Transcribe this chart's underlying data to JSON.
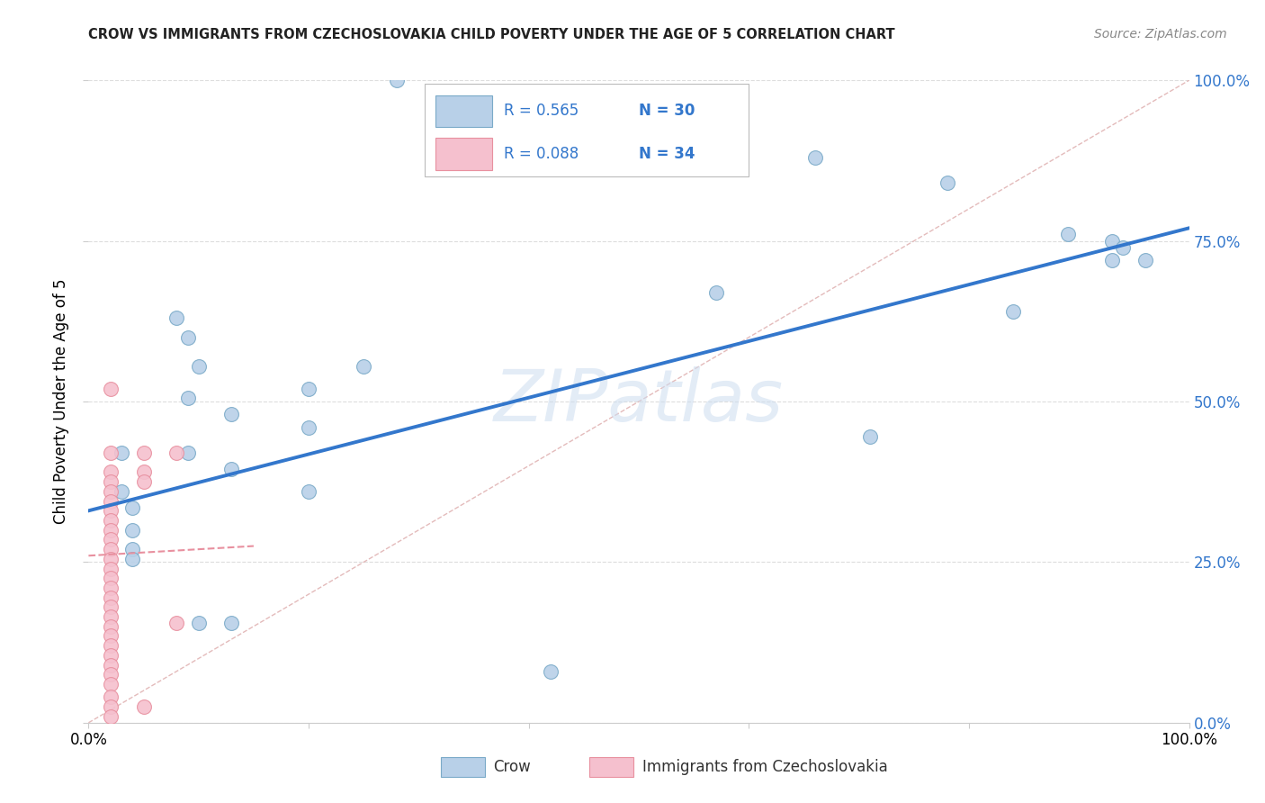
{
  "title": "CROW VS IMMIGRANTS FROM CZECHOSLOVAKIA CHILD POVERTY UNDER THE AGE OF 5 CORRELATION CHART",
  "source": "Source: ZipAtlas.com",
  "ylabel": "Child Poverty Under the Age of 5",
  "ytick_labels": [
    "0.0%",
    "25.0%",
    "50.0%",
    "75.0%",
    "100.0%"
  ],
  "ytick_vals": [
    0.0,
    0.25,
    0.5,
    0.75,
    1.0
  ],
  "xtick_labels": [
    "0.0%",
    "",
    "",
    "",
    "",
    "100.0%"
  ],
  "xtick_vals": [
    0.0,
    0.2,
    0.4,
    0.6,
    0.8,
    1.0
  ],
  "watermark": "ZIPatlas",
  "crow_color": "#b8d0e8",
  "crow_edge_color": "#7aaac8",
  "immig_color": "#f5c0ce",
  "immig_edge_color": "#e8909f",
  "blue_line_color": "#3377cc",
  "pink_line_color": "#e8909f",
  "diag_line_color": "#ddaaaa",
  "crow_points": [
    [
      0.28,
      1.0
    ],
    [
      0.66,
      0.88
    ],
    [
      0.78,
      0.84
    ],
    [
      0.89,
      0.76
    ],
    [
      0.93,
      0.75
    ],
    [
      0.94,
      0.74
    ],
    [
      0.93,
      0.72
    ],
    [
      0.96,
      0.72
    ],
    [
      0.57,
      0.67
    ],
    [
      0.84,
      0.64
    ],
    [
      0.08,
      0.63
    ],
    [
      0.09,
      0.6
    ],
    [
      0.1,
      0.555
    ],
    [
      0.25,
      0.555
    ],
    [
      0.2,
      0.52
    ],
    [
      0.09,
      0.505
    ],
    [
      0.13,
      0.48
    ],
    [
      0.2,
      0.46
    ],
    [
      0.71,
      0.445
    ],
    [
      0.09,
      0.42
    ],
    [
      0.03,
      0.42
    ],
    [
      0.13,
      0.395
    ],
    [
      0.2,
      0.36
    ],
    [
      0.03,
      0.36
    ],
    [
      0.04,
      0.335
    ],
    [
      0.04,
      0.3
    ],
    [
      0.04,
      0.27
    ],
    [
      0.04,
      0.255
    ],
    [
      0.1,
      0.155
    ],
    [
      0.13,
      0.155
    ],
    [
      0.42,
      0.08
    ]
  ],
  "immig_points": [
    [
      0.02,
      0.52
    ],
    [
      0.02,
      0.42
    ],
    [
      0.02,
      0.39
    ],
    [
      0.02,
      0.375
    ],
    [
      0.02,
      0.36
    ],
    [
      0.02,
      0.345
    ],
    [
      0.02,
      0.33
    ],
    [
      0.02,
      0.315
    ],
    [
      0.02,
      0.3
    ],
    [
      0.02,
      0.285
    ],
    [
      0.02,
      0.27
    ],
    [
      0.02,
      0.255
    ],
    [
      0.02,
      0.24
    ],
    [
      0.02,
      0.225
    ],
    [
      0.02,
      0.21
    ],
    [
      0.02,
      0.195
    ],
    [
      0.02,
      0.18
    ],
    [
      0.02,
      0.165
    ],
    [
      0.02,
      0.15
    ],
    [
      0.02,
      0.135
    ],
    [
      0.02,
      0.12
    ],
    [
      0.02,
      0.105
    ],
    [
      0.02,
      0.09
    ],
    [
      0.02,
      0.075
    ],
    [
      0.02,
      0.06
    ],
    [
      0.02,
      0.04
    ],
    [
      0.02,
      0.025
    ],
    [
      0.05,
      0.42
    ],
    [
      0.05,
      0.39
    ],
    [
      0.05,
      0.375
    ],
    [
      0.05,
      0.025
    ],
    [
      0.08,
      0.42
    ],
    [
      0.02,
      0.01
    ],
    [
      0.08,
      0.155
    ]
  ],
  "crow_line_x": [
    0.0,
    1.0
  ],
  "crow_line_y": [
    0.33,
    0.77
  ],
  "immig_line_x": [
    0.0,
    0.15
  ],
  "immig_line_y": [
    0.26,
    0.275
  ],
  "marker_size": 130
}
